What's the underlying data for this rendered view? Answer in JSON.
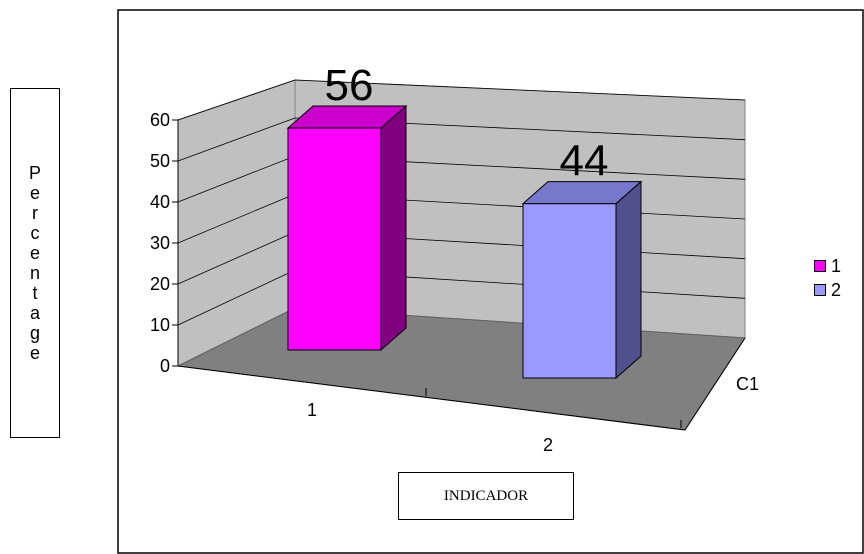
{
  "chart_data": {
    "type": "bar",
    "categories": [
      "1",
      "2"
    ],
    "values": [
      56,
      44
    ],
    "data_labels": [
      "56",
      "44"
    ],
    "series_colors": [
      "#ff00ff",
      "#9999ff"
    ],
    "series_side_colors": [
      "#800080",
      "#50508c"
    ],
    "series_top_colors": [
      "#cc00cc",
      "#7777cc"
    ],
    "yticks": [
      "0",
      "10",
      "20",
      "30",
      "40",
      "50",
      "60"
    ],
    "ylim": [
      0,
      60
    ],
    "depth_label": "C1",
    "xlabel": "INDICADOR",
    "ylabel_letters": [
      "P",
      "e",
      "r",
      "c",
      "e",
      "n",
      "t",
      "a",
      "g",
      "e"
    ],
    "legend": [
      {
        "label": "1",
        "color": "#ff00ff"
      },
      {
        "label": "2",
        "color": "#9999ff"
      }
    ],
    "legend_position": "right",
    "grid": true
  }
}
